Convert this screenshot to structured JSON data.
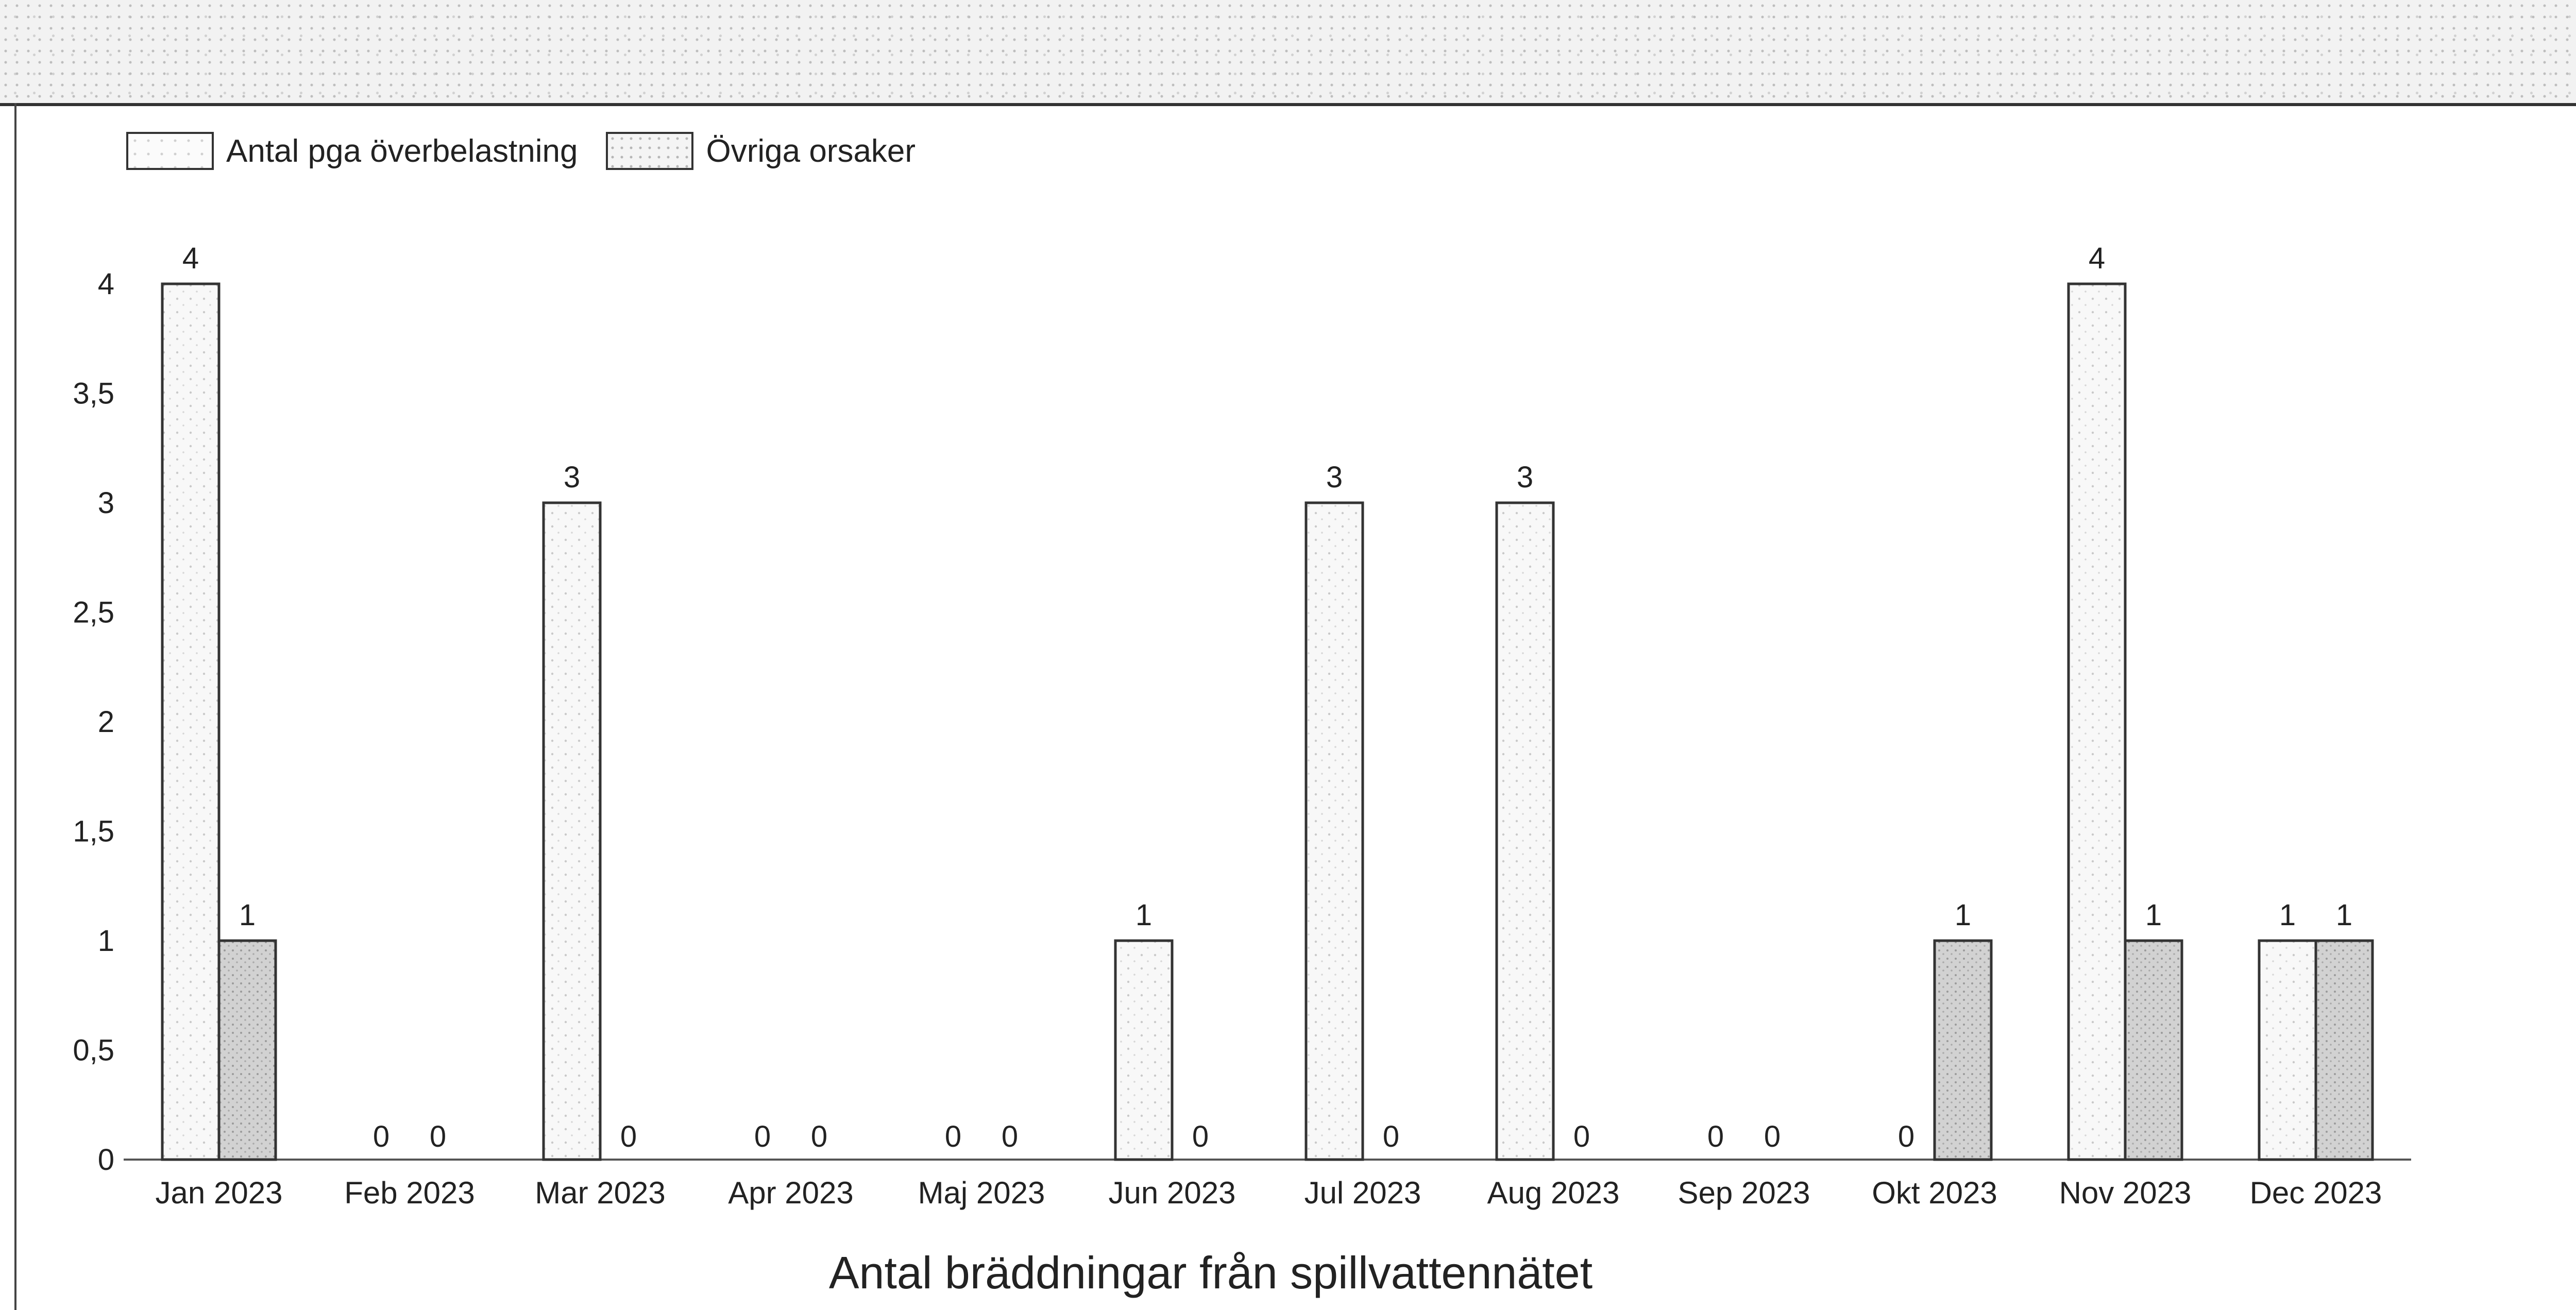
{
  "colors": {
    "series_overbelastning_fill": "#f7f7f7",
    "series_ovriga_fill": "#c8c8c8",
    "bar_border": "#333333",
    "axis": "#555555",
    "text": "#222222"
  },
  "chart_data": {
    "type": "bar",
    "title": "Antal bräddningar från spillvattennätet",
    "xlabel": "",
    "ylabel": "",
    "ylim": [
      0,
      4
    ],
    "yticks": [
      "0",
      "0,5",
      "1",
      "1,5",
      "2",
      "2,5",
      "3",
      "3,5",
      "4"
    ],
    "grid": false,
    "legend_position": "top-left",
    "categories": [
      "Jan 2023",
      "Feb 2023",
      "Mar 2023",
      "Apr 2023",
      "Maj 2023",
      "Jun 2023",
      "Jul 2023",
      "Aug 2023",
      "Sep 2023",
      "Okt 2023",
      "Nov 2023",
      "Dec 2023"
    ],
    "series": [
      {
        "name": "Antal pga överbelastning",
        "values": [
          4,
          0,
          3,
          0,
          0,
          1,
          3,
          3,
          0,
          0,
          4,
          1
        ]
      },
      {
        "name": "Övriga orsaker",
        "values": [
          1,
          0,
          0,
          0,
          0,
          0,
          0,
          0,
          0,
          1,
          1,
          1
        ]
      }
    ]
  }
}
